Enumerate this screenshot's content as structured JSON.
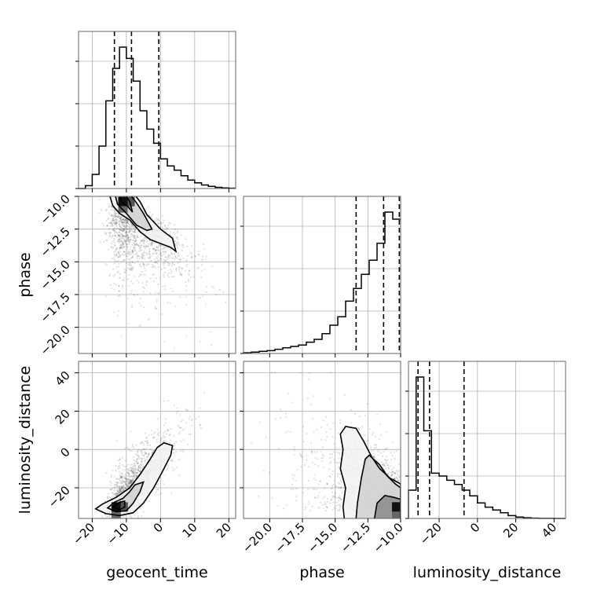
{
  "chart_data": {
    "type": "corner",
    "parameters": [
      "geocent_time",
      "phase",
      "luminosity_distance"
    ],
    "axis_labels": {
      "x": [
        "geocent_time",
        "phase",
        "luminosity_distance"
      ],
      "y": [
        "phase",
        "luminosity_distance"
      ]
    },
    "ranges": {
      "geocent_time": [
        -24,
        22
      ],
      "phase": [
        -22,
        -10
      ],
      "luminosity_distance": [
        -36,
        46
      ]
    },
    "ticks": {
      "geocent_time": {
        "values": [
          -20,
          -10,
          0,
          10,
          20
        ],
        "labels": [
          "−20",
          "−10",
          "0",
          "10",
          "20"
        ]
      },
      "phase": {
        "values": [
          -20.0,
          -17.5,
          -15.0,
          -12.5,
          -10.0
        ],
        "labels": [
          "−20.0",
          "−17.5",
          "−15.0",
          "−12.5",
          "−10.0"
        ]
      },
      "luminosity_distance": {
        "values": [
          -20,
          0,
          20,
          40
        ],
        "labels": [
          "−20",
          "0",
          "20",
          "40"
        ]
      },
      "phase_y": {
        "values": [
          -20.0,
          -17.5,
          -15.0,
          -12.5,
          -10.0
        ],
        "labels": [
          "−20.0",
          "−17.5",
          "−15.0",
          "−12.5",
          "−10.0"
        ]
      },
      "luminosity_distance_y": {
        "values": [
          -20,
          0,
          20,
          40
        ],
        "labels": [
          "−20",
          "0",
          "20",
          "40"
        ]
      }
    },
    "quantiles": {
      "geocent_time": [
        -13.5,
        -8.5,
        -0.5
      ],
      "phase": [
        -13.4,
        -11.3,
        -10.1
      ],
      "luminosity_distance": [
        -31,
        -25,
        -7
      ]
    },
    "histograms": {
      "geocent_time": {
        "edges": [
          -24,
          -22,
          -20,
          -18,
          -16,
          -14,
          -12,
          -10,
          -8,
          -6,
          -4,
          -2,
          0,
          2,
          4,
          6,
          8,
          10,
          12,
          14,
          16,
          18,
          20,
          22
        ],
        "counts": [
          0,
          0.02,
          0.1,
          0.3,
          0.62,
          0.85,
          1.0,
          0.92,
          0.76,
          0.55,
          0.42,
          0.32,
          0.21,
          0.16,
          0.13,
          0.09,
          0.06,
          0.04,
          0.025,
          0.015,
          0.008,
          0.004,
          0.002
        ]
      },
      "phase": {
        "edges": [
          -22,
          -21.4,
          -20.8,
          -20.2,
          -19.6,
          -19,
          -18.4,
          -17.8,
          -17.2,
          -16.6,
          -16,
          -15.4,
          -14.8,
          -14.2,
          -13.6,
          -13,
          -12.4,
          -11.8,
          -11.2,
          -10.6,
          -10
        ],
        "counts": [
          0.005,
          0.01,
          0.015,
          0.02,
          0.03,
          0.04,
          0.05,
          0.06,
          0.08,
          0.1,
          0.14,
          0.2,
          0.26,
          0.37,
          0.46,
          0.56,
          0.66,
          0.78,
          1.0,
          0.95
        ]
      },
      "luminosity_distance": {
        "edges": [
          -36,
          -32,
          -28,
          -24,
          -20,
          -16,
          -12,
          -8,
          -4,
          0,
          4,
          8,
          12,
          16,
          20,
          24,
          28,
          32,
          36,
          40,
          44,
          46
        ],
        "counts": [
          0.2,
          1.0,
          0.62,
          0.32,
          0.3,
          0.27,
          0.24,
          0.2,
          0.16,
          0.11,
          0.08,
          0.06,
          0.04,
          0.02,
          0.01,
          0.005,
          0.002,
          0.001,
          0.0005,
          0,
          0
        ]
      }
    },
    "scatter_density": {
      "phase_vs_geocent_time": {
        "x_center": -8,
        "y_center": -12,
        "trend": "negative"
      },
      "luminosity_distance_vs_geocent_time": {
        "x_center": -8,
        "y_center": -22,
        "trend": "positive"
      },
      "luminosity_distance_vs_phase": {
        "x_center": -12,
        "y_center": -20,
        "trend": "negative"
      }
    },
    "grid": true
  }
}
